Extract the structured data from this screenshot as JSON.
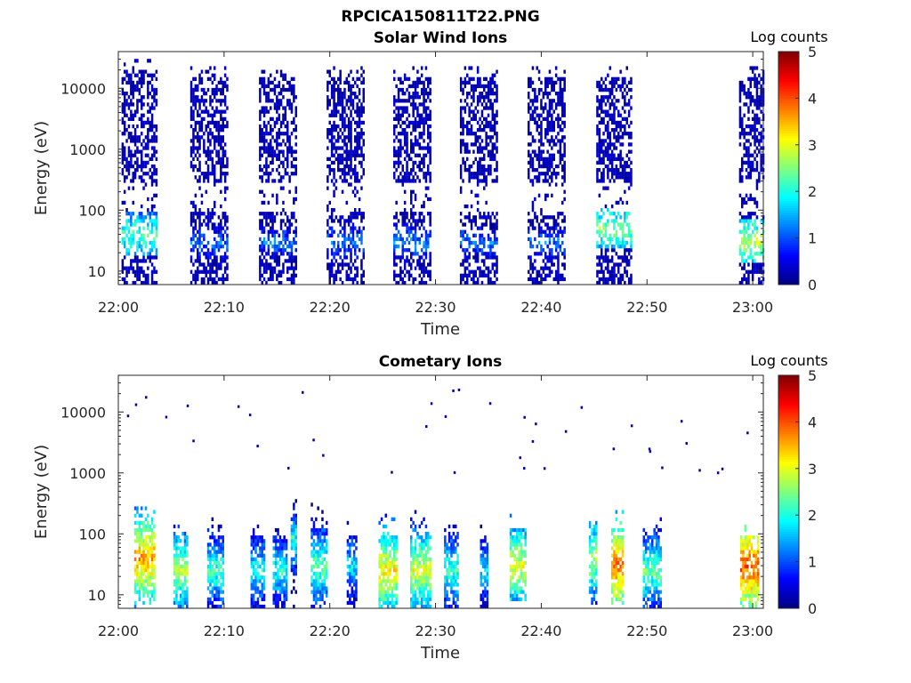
{
  "figure": {
    "title": "RPCICA150811T22.PNG"
  },
  "chart_data": [
    {
      "type": "heatmap",
      "title": "Solar Wind Ions",
      "xlabel": "Time",
      "ylabel": "Energy (eV)",
      "x_ticks": [
        "22:00",
        "22:10",
        "22:20",
        "22:30",
        "22:40",
        "22:50",
        "23:00"
      ],
      "y_ticks": [
        "10",
        "100",
        "1000",
        "10000"
      ],
      "y_scale": "log",
      "ylim": [
        6,
        40000
      ],
      "xlim_minutes": [
        0,
        61
      ],
      "colorbar": {
        "label": "Log counts",
        "ticks": [
          "0",
          "1",
          "2",
          "3",
          "4",
          "5"
        ],
        "range": [
          0,
          5
        ],
        "colormap": "jet"
      },
      "bursts": [
        {
          "start": 0.3,
          "end": 3.7,
          "emax": 20000,
          "peak_e": 40,
          "peak": 2.3
        },
        {
          "start": 6.8,
          "end": 10.3,
          "emax": 15000,
          "peak_e": 30,
          "peak": 1.2
        },
        {
          "start": 13.3,
          "end": 16.7,
          "emax": 15000,
          "peak_e": 30,
          "peak": 1.2
        },
        {
          "start": 19.7,
          "end": 23.1,
          "emax": 15000,
          "peak_e": 30,
          "peak": 1.2
        },
        {
          "start": 26.0,
          "end": 29.4,
          "emax": 15000,
          "peak_e": 30,
          "peak": 1.3
        },
        {
          "start": 32.3,
          "end": 35.9,
          "emax": 15000,
          "peak_e": 30,
          "peak": 1.2
        },
        {
          "start": 38.7,
          "end": 42.3,
          "emax": 15000,
          "peak_e": 30,
          "peak": 1.2
        },
        {
          "start": 45.2,
          "end": 48.6,
          "emax": 15000,
          "peak_e": 50,
          "peak": 2.5
        },
        {
          "start": 58.7,
          "end": 61.0,
          "emax": 15000,
          "peak_e": 30,
          "peak": 2.8
        }
      ]
    },
    {
      "type": "heatmap",
      "title": "Cometary Ions",
      "xlabel": "Time",
      "ylabel": "Energy (eV)",
      "x_ticks": [
        "22:00",
        "22:10",
        "22:20",
        "22:30",
        "22:40",
        "22:50",
        "23:00"
      ],
      "y_ticks": [
        "10",
        "100",
        "1000",
        "10000"
      ],
      "y_scale": "log",
      "ylim": [
        6,
        40000
      ],
      "xlim_minutes": [
        0,
        61
      ],
      "colorbar": {
        "label": "Log counts",
        "ticks": [
          "0",
          "1",
          "2",
          "3",
          "4",
          "5"
        ],
        "range": [
          0,
          5
        ],
        "colormap": "jet"
      },
      "bursts": [
        {
          "start": 1.5,
          "end": 3.5,
          "emax": 300,
          "peak_e": 40,
          "peak": 3.6
        },
        {
          "start": 5.2,
          "end": 6.6,
          "emax": 150,
          "peak_e": 25,
          "peak": 2.8
        },
        {
          "start": 8.4,
          "end": 9.8,
          "emax": 200,
          "peak_e": 25,
          "peak": 2.2
        },
        {
          "start": 12.5,
          "end": 13.8,
          "emax": 150,
          "peak_e": 25,
          "peak": 2.0
        },
        {
          "start": 14.6,
          "end": 15.8,
          "emax": 120,
          "peak_e": 25,
          "peak": 2.0
        },
        {
          "start": 16.3,
          "end": 16.9,
          "emax": 300,
          "peak_e": 80,
          "peak": 2.0
        },
        {
          "start": 18.2,
          "end": 19.6,
          "emax": 200,
          "peak_e": 30,
          "peak": 2.4
        },
        {
          "start": 21.6,
          "end": 22.5,
          "emax": 100,
          "peak_e": 30,
          "peak": 1.8
        },
        {
          "start": 24.6,
          "end": 26.2,
          "emax": 200,
          "peak_e": 25,
          "peak": 3.2
        },
        {
          "start": 27.6,
          "end": 29.4,
          "emax": 200,
          "peak_e": 25,
          "peak": 3.0
        },
        {
          "start": 30.8,
          "end": 32.0,
          "emax": 150,
          "peak_e": 25,
          "peak": 2.2
        },
        {
          "start": 34.2,
          "end": 35.0,
          "emax": 100,
          "peak_e": 25,
          "peak": 1.8
        },
        {
          "start": 37.0,
          "end": 38.6,
          "emax": 150,
          "peak_e": 30,
          "peak": 3.0
        },
        {
          "start": 44.5,
          "end": 45.2,
          "emax": 150,
          "peak_e": 40,
          "peak": 2.8
        },
        {
          "start": 46.6,
          "end": 47.8,
          "emax": 200,
          "peak_e": 30,
          "peak": 3.8
        },
        {
          "start": 49.6,
          "end": 51.3,
          "emax": 120,
          "peak_e": 25,
          "peak": 2.4
        },
        {
          "start": 58.8,
          "end": 60.6,
          "emax": 100,
          "peak_e": 30,
          "peak": 4.0
        }
      ]
    }
  ]
}
